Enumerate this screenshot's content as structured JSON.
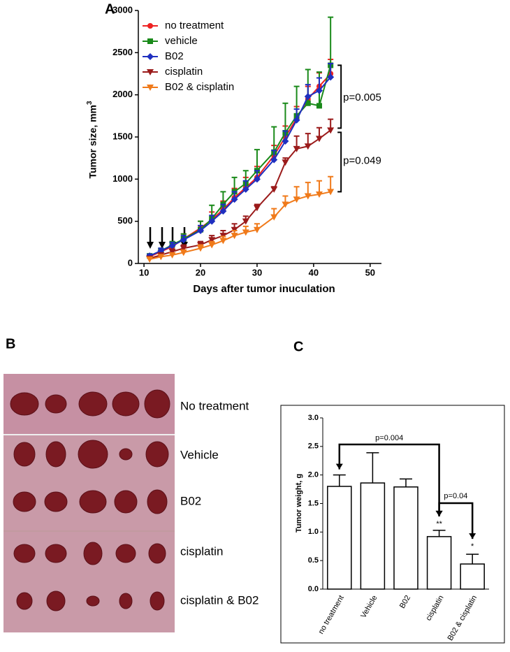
{
  "chart_data": [
    {
      "type": "line",
      "panel_label": "A",
      "xlabel": "Days after tumor inuculation",
      "ylabel": "Tumor size, mm",
      "ylabel_superscript": "3",
      "x": [
        11,
        13,
        15,
        17,
        20,
        22,
        24,
        26,
        28,
        30,
        33,
        35,
        37,
        39,
        41,
        43
      ],
      "xlim": [
        9,
        52
      ],
      "xticks": [
        10,
        20,
        30,
        40,
        50
      ],
      "ylim": [
        0,
        3000
      ],
      "yticks": [
        0,
        500,
        1000,
        1500,
        2000,
        2500,
        3000
      ],
      "legend": "upper left",
      "series": [
        {
          "name": "no treatment",
          "color": "#ee2222",
          "marker": "circle",
          "values": [
            80,
            140,
            200,
            290,
            420,
            520,
            640,
            780,
            900,
            1020,
            1280,
            1500,
            1720,
            1950,
            2100,
            2250
          ],
          "errors": [
            20,
            30,
            40,
            60,
            80,
            90,
            100,
            110,
            120,
            130,
            120,
            130,
            140,
            150,
            160,
            170
          ]
        },
        {
          "name": "vehicle",
          "color": "#1a8a1a",
          "marker": "square",
          "values": [
            90,
            150,
            220,
            290,
            400,
            530,
            700,
            850,
            950,
            1100,
            1320,
            1550,
            1750,
            1900,
            1870,
            2350
          ],
          "errors": [
            20,
            30,
            40,
            60,
            100,
            160,
            150,
            170,
            150,
            250,
            300,
            350,
            350,
            400,
            400,
            570
          ]
        },
        {
          "name": "B02",
          "color": "#1f2fc0",
          "marker": "diamond",
          "values": [
            90,
            150,
            210,
            280,
            390,
            500,
            620,
            760,
            880,
            1000,
            1230,
            1450,
            1700,
            1980,
            2050,
            2210
          ],
          "errors": [
            20,
            30,
            40,
            50,
            60,
            70,
            80,
            90,
            100,
            100,
            110,
            120,
            130,
            140,
            150,
            160
          ]
        },
        {
          "name": "cisplatin",
          "color": "#9b1b1b",
          "marker": "triangle",
          "values": [
            60,
            100,
            140,
            180,
            220,
            280,
            330,
            400,
            500,
            660,
            880,
            1200,
            1360,
            1390,
            1480,
            1580
          ],
          "errors": [
            20,
            20,
            30,
            40,
            40,
            50,
            60,
            70,
            60,
            40,
            30,
            50,
            150,
            150,
            130,
            130
          ]
        },
        {
          "name": "B02 & cisplatin",
          "color": "#f07a1a",
          "marker": "triangle",
          "values": [
            50,
            80,
            100,
            130,
            180,
            220,
            270,
            330,
            370,
            400,
            550,
            700,
            760,
            800,
            820,
            850
          ],
          "errors": [
            20,
            20,
            20,
            30,
            40,
            40,
            50,
            60,
            70,
            70,
            100,
            100,
            150,
            160,
            160,
            180
          ]
        }
      ],
      "annotations": [
        "p=0.005",
        "p=0.049"
      ]
    },
    {
      "type": "bar",
      "panel_label": "C",
      "ylabel": "Tumor weight, g",
      "categories": [
        "no treatment",
        "Vehicle",
        "B02",
        "cisplatin",
        "B02 & cisplatin"
      ],
      "values": [
        1.8,
        1.86,
        1.79,
        0.92,
        0.44
      ],
      "errors": [
        0.2,
        0.53,
        0.14,
        0.11,
        0.17
      ],
      "color": "#ffffff",
      "ylim": [
        0,
        3
      ],
      "yticks": [
        {
          "value": 0,
          "label": "0.0"
        },
        {
          "value": 0.5,
          "label": "0.5"
        },
        {
          "value": 1,
          "label": "1.0"
        },
        {
          "value": 1.5,
          "label": "1.5"
        },
        {
          "value": 2,
          "label": "2.0"
        },
        {
          "value": 2.5,
          "label": "2.5"
        },
        {
          "value": 3,
          "label": "3.0"
        }
      ],
      "annotations": [
        "p=0.004",
        "p=0.04",
        "**",
        "*"
      ]
    }
  ],
  "photo_panel": {
    "panel_label": "B",
    "rows": [
      "No treatment",
      "Vehicle",
      "B02",
      "cisplatin",
      "cisplatin & B02"
    ]
  }
}
